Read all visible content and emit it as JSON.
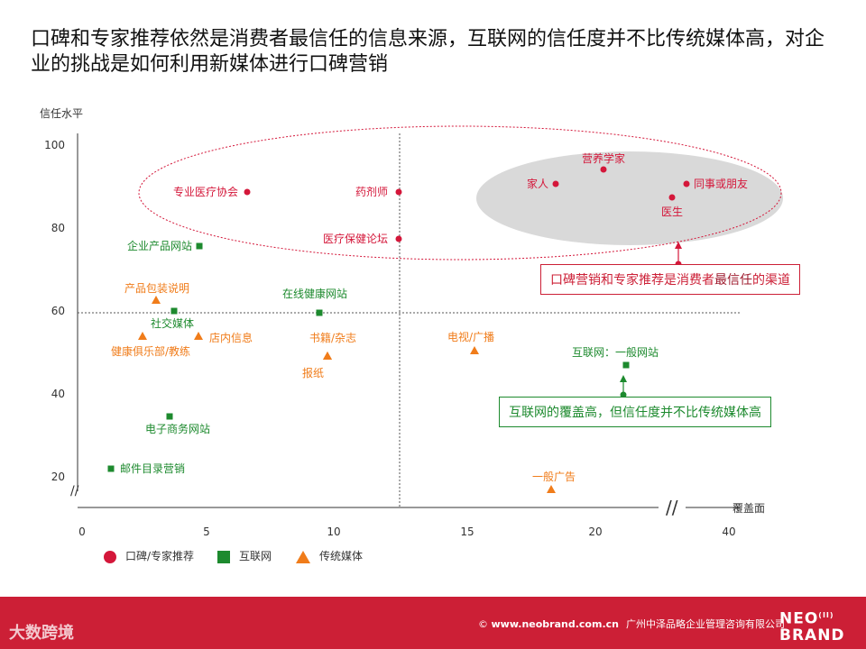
{
  "title": "口碑和专家推荐依然是消费者最信任的信息来源，互联网的信任度并不比传统媒体高，对企业的挑战是如何利用新媒体进行口碑营销",
  "colors": {
    "red": "#d4173a",
    "green": "#1d8a2e",
    "orange": "#f07c1a",
    "footer": "#cc1f36"
  },
  "chart_data": {
    "type": "scatter",
    "ylabel": "信任水平",
    "xlabel": "覆盖面",
    "y_ticks": [
      "100",
      "80",
      "60",
      "40",
      "20"
    ],
    "x_ticks": [
      "0",
      "5",
      "10",
      "15",
      "20",
      "40"
    ],
    "axis_break_y": "//",
    "axis_break_x": "//",
    "series": [
      {
        "name": "口碑/专家推荐",
        "marker": "circle",
        "points": [
          {
            "label": "专业医疗协会",
            "x": 6.5,
            "y": 88
          },
          {
            "label": "药剂师",
            "x": 12.5,
            "y": 88
          },
          {
            "label": "医疗保健论坛",
            "x": 12.5,
            "y": 77
          },
          {
            "label": "营养学家",
            "x": 20,
            "y": 94
          },
          {
            "label": "家人",
            "x": 18.3,
            "y": 90
          },
          {
            "label": "同事或朋友",
            "x": 22.5,
            "y": 90
          },
          {
            "label": "医生",
            "x": 22,
            "y": 87
          }
        ]
      },
      {
        "name": "互联网",
        "marker": "square",
        "points": [
          {
            "label": "企业产品网站",
            "x": 4.5,
            "y": 75
          },
          {
            "label": "在线健康网站",
            "x": 9,
            "y": 60
          },
          {
            "label": "社交媒体",
            "x": 3.5,
            "y": 60
          },
          {
            "label": "电子商务网站",
            "x": 3.3,
            "y": 35
          },
          {
            "label": "邮件目录营销",
            "x": 1.2,
            "y": 22
          },
          {
            "label": "互联网：一般网站",
            "x": 21,
            "y": 47
          }
        ]
      },
      {
        "name": "传统媒体",
        "marker": "triangle",
        "points": [
          {
            "label": "产品包装说明",
            "x": 3,
            "y": 63
          },
          {
            "label": "健康俱乐部/教练",
            "x": 2.5,
            "y": 54
          },
          {
            "label": "店内信息",
            "x": 4.5,
            "y": 54
          },
          {
            "label": "书籍/杂志",
            "x": 9.8,
            "y": 50
          },
          {
            "label": "报纸",
            "x": 9.8,
            "y": 50
          },
          {
            "label": "电视/广播",
            "x": 15.5,
            "y": 51
          },
          {
            "label": "一般广告",
            "x": 19,
            "y": 17
          }
        ]
      }
    ],
    "annotations": [
      {
        "text_before": "口碑营销和专家推荐是消费者",
        "highlight": "最信任",
        "text_after": "的渠道"
      },
      {
        "text": "互联网的覆盖高，但信任度并不比传统媒体高"
      }
    ]
  },
  "legend": {
    "items": [
      "口碑/专家推荐",
      "互联网",
      "传统媒体"
    ]
  },
  "footer": {
    "website": "www.neobrand.com.cn",
    "company": "广州中泽品略企业管理咨询有限公司",
    "brand_line1": "NEO",
    "brand_line2": "BRAND",
    "brand_mark": "(II)",
    "watermark": "大数跨境"
  }
}
